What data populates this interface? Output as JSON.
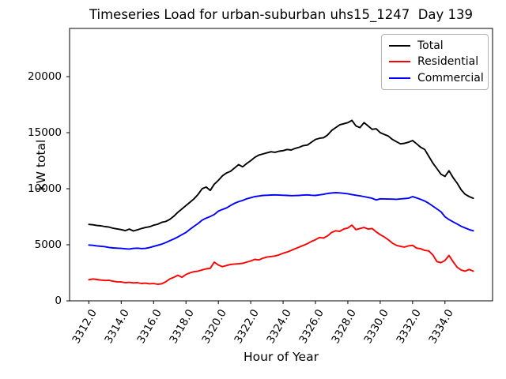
{
  "chart_data": {
    "type": "line",
    "title": "Timeseries Load for urban-suburban uhs15_1247  Day 139",
    "xlabel": "Hour of Year",
    "ylabel": "kW total",
    "grid": false,
    "legend_position": "upper right",
    "xlim": [
      3310.81,
      3336.94
    ],
    "ylim": [
      0,
      24300
    ],
    "x_tick_values": [
      3312,
      3314,
      3316,
      3318,
      3320,
      3322,
      3324,
      3326,
      3328,
      3330,
      3332,
      3334
    ],
    "x_tick_labels": [
      "3312.0",
      "3314.0",
      "3316.0",
      "3318.0",
      "3320.0",
      "3322.0",
      "3324.0",
      "3326.0",
      "3328.0",
      "3330.0",
      "3332.0",
      "3334.0"
    ],
    "y_tick_values": [
      0,
      5000,
      10000,
      15000,
      20000
    ],
    "y_tick_labels": [
      "0",
      "5000",
      "10000",
      "15000",
      "20000"
    ],
    "x_start": 3312.0,
    "x_step": 0.25,
    "series": [
      {
        "name": "Total",
        "color": "#000000",
        "values": [
          6820,
          6780,
          6720,
          6690,
          6620,
          6580,
          6470,
          6420,
          6350,
          6260,
          6400,
          6230,
          6330,
          6450,
          6540,
          6610,
          6750,
          6830,
          7000,
          7080,
          7260,
          7550,
          7900,
          8200,
          8500,
          8800,
          9100,
          9500,
          10000,
          10150,
          9850,
          10400,
          10750,
          11150,
          11400,
          11550,
          11850,
          12150,
          11950,
          12250,
          12500,
          12800,
          13000,
          13100,
          13200,
          13300,
          13250,
          13350,
          13400,
          13500,
          13450,
          13600,
          13700,
          13850,
          13900,
          14150,
          14400,
          14500,
          14550,
          14800,
          15200,
          15450,
          15700,
          15800,
          15900,
          16100,
          15600,
          15450,
          15900,
          15600,
          15300,
          15350,
          15000,
          14850,
          14700,
          14400,
          14200,
          14000,
          14050,
          14150,
          14300,
          14000,
          13700,
          13500,
          12900,
          12300,
          11800,
          11300,
          11100,
          11600,
          11000,
          10500,
          9900,
          9500,
          9300,
          9150
        ]
      },
      {
        "name": "Residential",
        "color": "#ff0000",
        "values": [
          1880,
          1950,
          1900,
          1850,
          1820,
          1830,
          1750,
          1700,
          1680,
          1620,
          1650,
          1600,
          1620,
          1550,
          1580,
          1520,
          1540,
          1480,
          1520,
          1700,
          1950,
          2100,
          2280,
          2100,
          2350,
          2500,
          2600,
          2650,
          2760,
          2850,
          2900,
          3450,
          3200,
          3050,
          3150,
          3250,
          3280,
          3300,
          3350,
          3450,
          3560,
          3700,
          3650,
          3800,
          3900,
          3950,
          4000,
          4100,
          4250,
          4350,
          4500,
          4650,
          4800,
          4950,
          5100,
          5300,
          5450,
          5650,
          5600,
          5800,
          6100,
          6250,
          6200,
          6400,
          6500,
          6750,
          6350,
          6450,
          6550,
          6400,
          6450,
          6150,
          5900,
          5700,
          5450,
          5150,
          4950,
          4850,
          4800,
          4900,
          4950,
          4700,
          4650,
          4500,
          4450,
          4100,
          3500,
          3400,
          3600,
          4050,
          3500,
          3000,
          2750,
          2650,
          2800,
          2650
        ]
      },
      {
        "name": "Commercial",
        "color": "#0000ff",
        "values": [
          4980,
          4950,
          4900,
          4870,
          4830,
          4760,
          4720,
          4700,
          4680,
          4640,
          4620,
          4680,
          4700,
          4660,
          4680,
          4750,
          4850,
          4950,
          5060,
          5200,
          5360,
          5520,
          5700,
          5900,
          6100,
          6380,
          6650,
          6900,
          7200,
          7380,
          7520,
          7700,
          8000,
          8150,
          8280,
          8500,
          8700,
          8850,
          8950,
          9100,
          9200,
          9300,
          9350,
          9400,
          9420,
          9440,
          9450,
          9430,
          9420,
          9400,
          9380,
          9390,
          9400,
          9430,
          9450,
          9420,
          9400,
          9450,
          9500,
          9580,
          9620,
          9650,
          9630,
          9590,
          9550,
          9480,
          9420,
          9360,
          9300,
          9220,
          9150,
          9000,
          9100,
          9090,
          9080,
          9070,
          9060,
          9090,
          9120,
          9150,
          9300,
          9180,
          9050,
          8900,
          8700,
          8450,
          8200,
          7950,
          7500,
          7250,
          7050,
          6850,
          6650,
          6500,
          6350,
          6250
        ]
      }
    ]
  }
}
